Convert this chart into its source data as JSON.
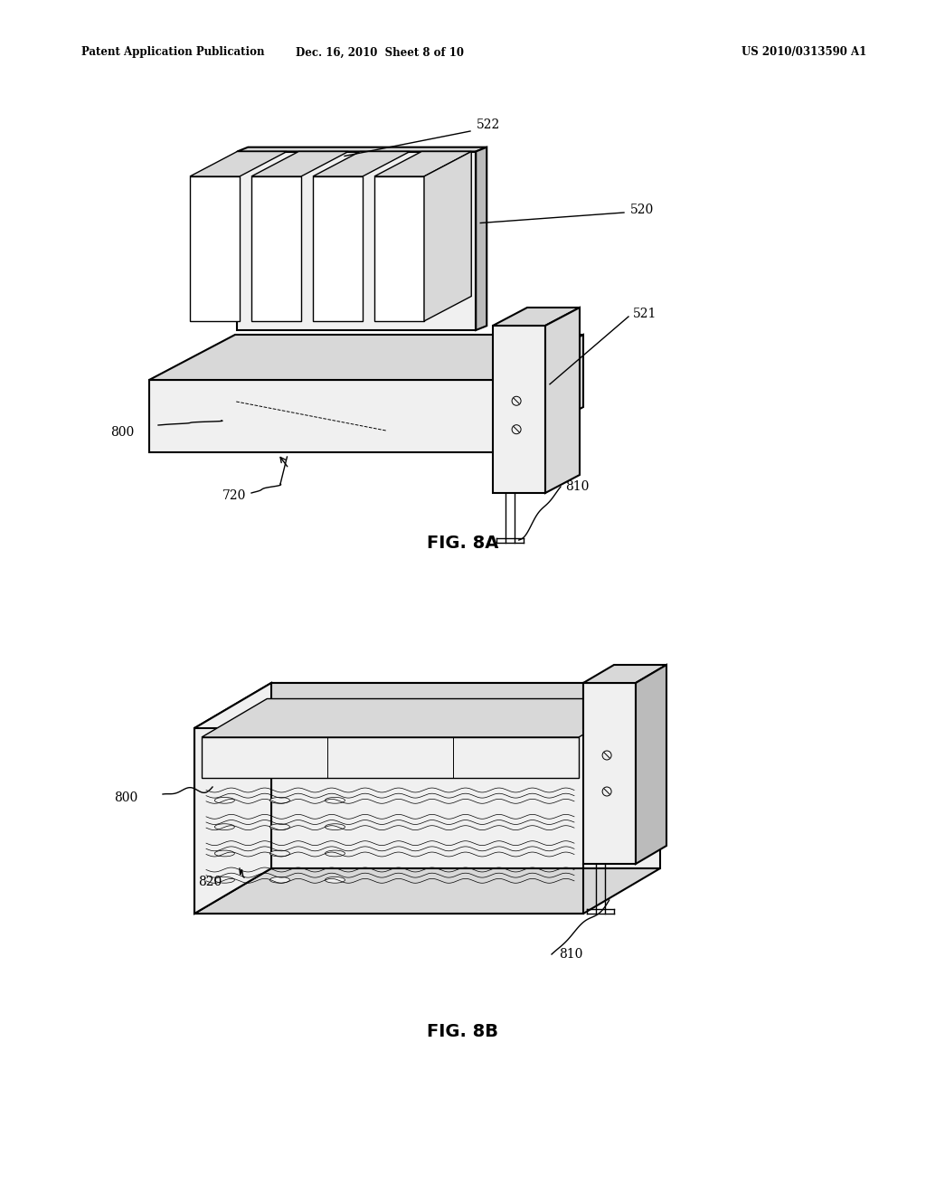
{
  "bg_color": "#ffffff",
  "header_left": "Patent Application Publication",
  "header_mid": "Dec. 16, 2010  Sheet 8 of 10",
  "header_right": "US 2010/0313590 A1",
  "fig_label_a": "FIG. 8A",
  "fig_label_b": "FIG. 8B",
  "line_color": "#000000",
  "text_color": "#000000",
  "fill_white": "#ffffff",
  "fill_light": "#f0f0f0",
  "fill_mid": "#d8d8d8",
  "fill_dark": "#bbbbbb"
}
